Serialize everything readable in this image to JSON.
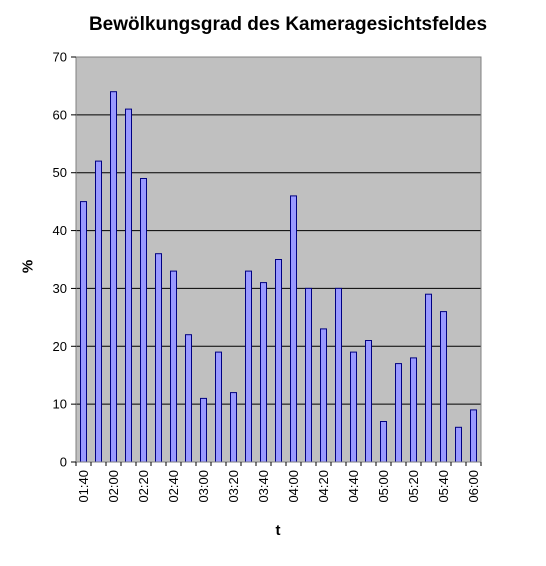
{
  "chart_data": {
    "type": "bar",
    "title": "Bewölkungsgrad des Kameragesichtsfeldes",
    "xlabel": "t",
    "ylabel": "%",
    "ylim": [
      0,
      70
    ],
    "yticks": [
      0,
      10,
      20,
      30,
      40,
      50,
      60,
      70
    ],
    "grid": true,
    "legend": "none",
    "categories": [
      "01:40",
      "01:50",
      "02:00",
      "02:10",
      "02:20",
      "02:30",
      "02:40",
      "02:50",
      "03:00",
      "03:10",
      "03:20",
      "03:30",
      "03:40",
      "03:50",
      "04:00",
      "04:10",
      "04:20",
      "04:30",
      "04:40",
      "04:50",
      "05:00",
      "05:10",
      "05:20",
      "05:30",
      "05:40",
      "05:50",
      "06:00"
    ],
    "xtick_labels": [
      "01:40",
      "02:00",
      "02:20",
      "02:40",
      "03:00",
      "03:20",
      "03:40",
      "04:00",
      "04:20",
      "04:40",
      "05:00",
      "05:20",
      "05:40",
      "06:00"
    ],
    "values": [
      45,
      52,
      64,
      61,
      49,
      36,
      33,
      22,
      11,
      19,
      12,
      33,
      31,
      35,
      46,
      30,
      23,
      30,
      19,
      21,
      7,
      17,
      18,
      29,
      26,
      6,
      9
    ],
    "colors": {
      "bar_fill": "#9999ff",
      "bar_stroke": "#000080",
      "plot_bg": "#c0c0c0",
      "grid": "#000000"
    }
  }
}
